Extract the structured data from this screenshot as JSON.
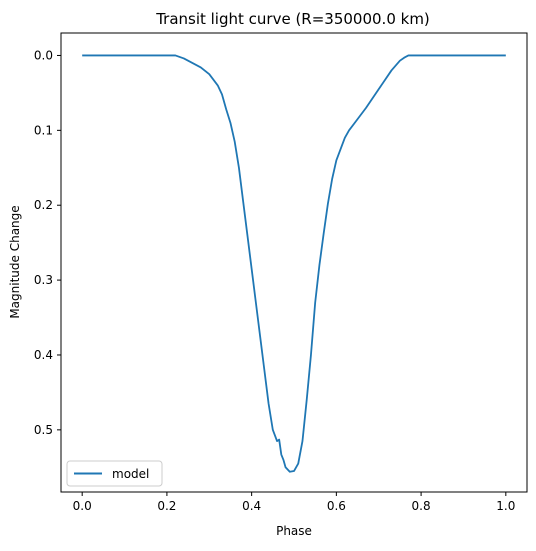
{
  "chart_data": {
    "type": "line",
    "title": "Transit light curve (R=350000.0 km)",
    "xlabel": "Phase",
    "ylabel": "Magnitude Change",
    "xlim": [
      -0.05,
      1.05
    ],
    "ylim": [
      -0.03,
      0.583
    ],
    "y_inverted": true,
    "grid": false,
    "legend_position": "lower-left",
    "xticks": [
      0.0,
      0.2,
      0.4,
      0.6,
      0.8,
      1.0
    ],
    "xtick_labels": [
      "0.0",
      "0.2",
      "0.4",
      "0.6",
      "0.8",
      "1.0"
    ],
    "yticks": [
      0.0,
      0.1,
      0.2,
      0.3,
      0.4,
      0.5
    ],
    "ytick_labels": [
      "0.0",
      "0.1",
      "0.2",
      "0.3",
      "0.4",
      "0.5"
    ],
    "series": [
      {
        "name": "model",
        "color": "#1f77b4",
        "x": [
          0.0,
          0.05,
          0.1,
          0.15,
          0.2,
          0.22,
          0.24,
          0.26,
          0.28,
          0.3,
          0.32,
          0.33,
          0.34,
          0.35,
          0.36,
          0.37,
          0.38,
          0.39,
          0.4,
          0.41,
          0.42,
          0.43,
          0.44,
          0.45,
          0.46,
          0.465,
          0.47,
          0.475,
          0.48,
          0.49,
          0.5,
          0.51,
          0.52,
          0.53,
          0.54,
          0.55,
          0.56,
          0.57,
          0.58,
          0.59,
          0.6,
          0.61,
          0.62,
          0.63,
          0.65,
          0.67,
          0.7,
          0.73,
          0.75,
          0.76,
          0.77,
          0.78,
          0.8,
          0.85,
          0.9,
          0.95,
          1.0
        ],
        "values": [
          0.0,
          0.0,
          0.0,
          0.0,
          0.0,
          0.0,
          0.004,
          0.01,
          0.016,
          0.025,
          0.04,
          0.052,
          0.072,
          0.09,
          0.115,
          0.15,
          0.195,
          0.24,
          0.285,
          0.33,
          0.375,
          0.42,
          0.465,
          0.5,
          0.515,
          0.513,
          0.533,
          0.54,
          0.55,
          0.556,
          0.555,
          0.545,
          0.515,
          0.46,
          0.4,
          0.33,
          0.28,
          0.238,
          0.198,
          0.165,
          0.14,
          0.125,
          0.11,
          0.1,
          0.085,
          0.07,
          0.045,
          0.02,
          0.007,
          0.003,
          0.0,
          0.0,
          0.0,
          0.0,
          0.0,
          0.0,
          0.0
        ]
      }
    ]
  }
}
